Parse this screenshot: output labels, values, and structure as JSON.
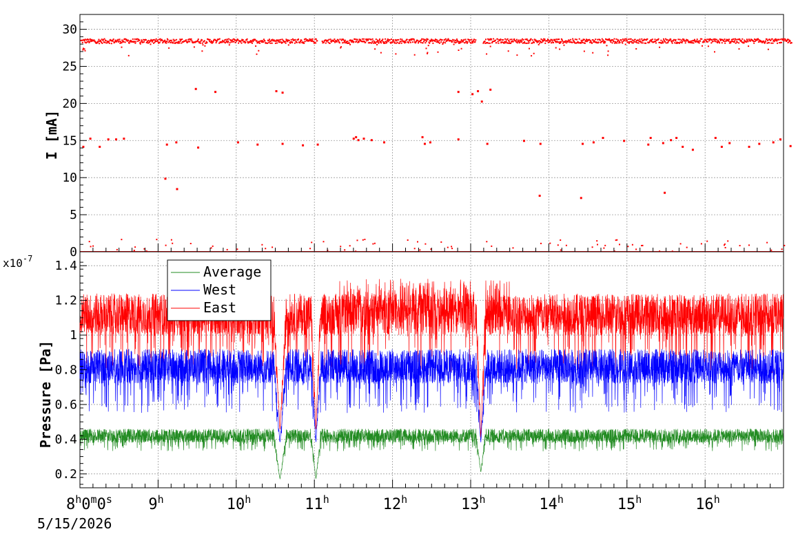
{
  "chart_data": [
    {
      "type": "scatter",
      "ylabel": "I [mA]",
      "ylim": [
        0,
        32
      ],
      "y_ticks": [
        0,
        5,
        10,
        15,
        20,
        25,
        30
      ],
      "y_tick_labels": [
        "0",
        "5",
        "10",
        "15",
        "20",
        "25",
        "30"
      ],
      "xlim": [
        0,
        9.1
      ],
      "grid": true,
      "series": [
        {
          "color": "#ff0000",
          "baseline_level": 28.5,
          "noise": 0.3,
          "gaps_hours": [
            [
              3.03,
              3.09
            ],
            [
              5.06,
              5.15
            ]
          ],
          "outlier_points": [
            {
              "x": 0.03,
              "y": 14.2
            },
            {
              "x": 0.12,
              "y": 15.3
            },
            {
              "x": 0.24,
              "y": 14.2
            },
            {
              "x": 0.35,
              "y": 15.2
            },
            {
              "x": 0.45,
              "y": 15.2
            },
            {
              "x": 0.55,
              "y": 15.3
            },
            {
              "x": 1.08,
              "y": 9.9
            },
            {
              "x": 1.1,
              "y": 14.5
            },
            {
              "x": 1.22,
              "y": 14.8
            },
            {
              "x": 1.23,
              "y": 8.5
            },
            {
              "x": 1.47,
              "y": 22.0
            },
            {
              "x": 1.5,
              "y": 14.1
            },
            {
              "x": 1.72,
              "y": 21.6
            },
            {
              "x": 2.01,
              "y": 14.8
            },
            {
              "x": 2.26,
              "y": 14.5
            },
            {
              "x": 2.5,
              "y": 21.7
            },
            {
              "x": 2.58,
              "y": 21.5
            },
            {
              "x": 2.58,
              "y": 14.6
            },
            {
              "x": 2.84,
              "y": 14.4
            },
            {
              "x": 3.03,
              "y": 14.5
            },
            {
              "x": 3.49,
              "y": 15.3
            },
            {
              "x": 3.52,
              "y": 15.5
            },
            {
              "x": 3.55,
              "y": 15.1
            },
            {
              "x": 3.62,
              "y": 15.3
            },
            {
              "x": 3.72,
              "y": 15.1
            },
            {
              "x": 3.88,
              "y": 14.8
            },
            {
              "x": 4.37,
              "y": 15.5
            },
            {
              "x": 4.4,
              "y": 14.6
            },
            {
              "x": 4.47,
              "y": 14.8
            },
            {
              "x": 4.83,
              "y": 21.6
            },
            {
              "x": 4.83,
              "y": 15.2
            },
            {
              "x": 5.01,
              "y": 21.3
            },
            {
              "x": 5.08,
              "y": 21.7
            },
            {
              "x": 5.13,
              "y": 20.3
            },
            {
              "x": 5.2,
              "y": 14.6
            },
            {
              "x": 5.24,
              "y": 21.9
            },
            {
              "x": 5.67,
              "y": 15.0
            },
            {
              "x": 5.87,
              "y": 7.6
            },
            {
              "x": 5.88,
              "y": 14.6
            },
            {
              "x": 6.4,
              "y": 7.3
            },
            {
              "x": 6.42,
              "y": 14.6
            },
            {
              "x": 6.56,
              "y": 14.8
            },
            {
              "x": 6.68,
              "y": 15.4
            },
            {
              "x": 6.95,
              "y": 15.0
            },
            {
              "x": 7.26,
              "y": 14.5
            },
            {
              "x": 7.29,
              "y": 15.4
            },
            {
              "x": 7.45,
              "y": 14.7
            },
            {
              "x": 7.47,
              "y": 8.0
            },
            {
              "x": 7.55,
              "y": 15.1
            },
            {
              "x": 7.62,
              "y": 15.4
            },
            {
              "x": 7.7,
              "y": 14.2
            },
            {
              "x": 7.83,
              "y": 13.8
            },
            {
              "x": 8.12,
              "y": 15.4
            },
            {
              "x": 8.2,
              "y": 14.2
            },
            {
              "x": 8.3,
              "y": 14.7
            },
            {
              "x": 8.55,
              "y": 14.2
            },
            {
              "x": 8.68,
              "y": 14.6
            },
            {
              "x": 8.86,
              "y": 14.8
            },
            {
              "x": 8.95,
              "y": 15.2
            },
            {
              "x": 9.08,
              "y": 14.3
            }
          ],
          "zero_band_points": 90
        }
      ]
    },
    {
      "type": "line",
      "ylabel": "Pressure [Pa]",
      "y_exponent": "x10",
      "y_exponent_power": "-7",
      "ylim": [
        0.12,
        1.48
      ],
      "y_ticks": [
        0.2,
        0.4,
        0.6,
        0.8,
        1.0,
        1.2,
        1.4
      ],
      "y_tick_labels": [
        "0.2",
        "0.4",
        "0.6",
        "0.8",
        "1",
        "1.2",
        "1.4"
      ],
      "xlim": [
        0,
        9.1
      ],
      "x_ticks": [
        0,
        1,
        2,
        3,
        4,
        5,
        6,
        7,
        8
      ],
      "x_tick_labels": [
        {
          "h": "8",
          "extra": "0",
          "extra2": "0"
        },
        {
          "h": "9"
        },
        {
          "h": "10"
        },
        {
          "h": "11"
        },
        {
          "h": "12"
        },
        {
          "h": "13"
        },
        {
          "h": "14"
        },
        {
          "h": "15"
        },
        {
          "h": "16"
        }
      ],
      "x_tick_units": {
        "h": "h",
        "m": "m",
        "s": "s"
      },
      "x_offset_label": "5/15/2026",
      "grid": true,
      "legend": {
        "position": "top-left",
        "entries": [
          {
            "label": "Average",
            "color": "#228B22"
          },
          {
            "label": "West",
            "color": "#0000ff"
          },
          {
            "label": "East",
            "color": "#ff0000"
          }
        ]
      },
      "series": [
        {
          "name": "East",
          "color": "#ff0000",
          "mean": 1.12,
          "spread": 0.12,
          "low_spikes": 0.78
        },
        {
          "name": "West",
          "color": "#0000ff",
          "mean": 0.82,
          "spread": 0.1,
          "low_spikes": 0.55
        },
        {
          "name": "Average",
          "color": "#228B22",
          "mean": 0.42,
          "spread": 0.04,
          "low_spikes": 0.33
        }
      ],
      "dips": [
        {
          "x": 2.56,
          "east": 0.45,
          "west": 0.38,
          "avg": 0.17,
          "width": 0.08
        },
        {
          "x": 3.02,
          "east": 0.45,
          "west": 0.38,
          "avg": 0.17,
          "width": 0.06
        },
        {
          "x": 5.13,
          "east": 0.4,
          "west": 0.38,
          "avg": 0.21,
          "width": 0.06
        }
      ]
    }
  ]
}
